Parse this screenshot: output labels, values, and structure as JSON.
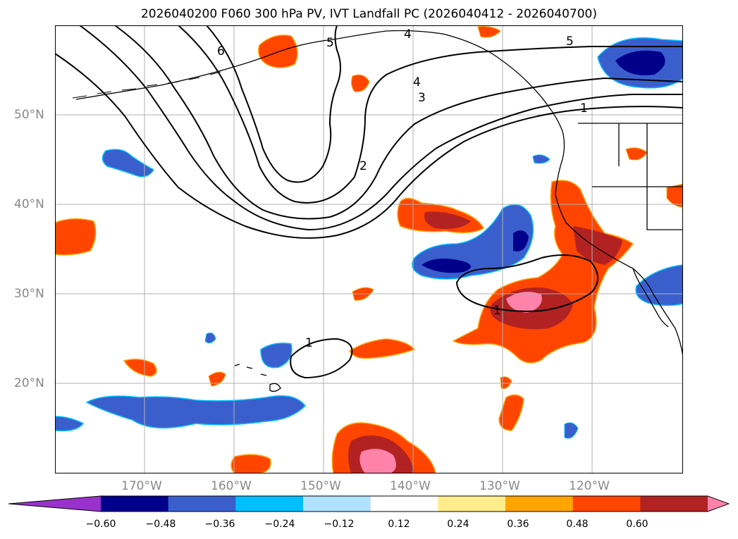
{
  "title": "2026040200 F060 300 hPa PV, IVT Landfall PC (2026040412 - 2026040700)",
  "lat_ticks": [
    "50°N",
    "40°N",
    "30°N",
    "20°N"
  ],
  "lon_ticks": [
    "170°W",
    "160°W",
    "150°W",
    "140°W",
    "130°W",
    "120°W"
  ],
  "contour_labels": [
    "6",
    "5",
    "4",
    "4",
    "3",
    "2",
    "1",
    "5",
    "1",
    "1"
  ],
  "colorbar": {
    "ticks": [
      "−0.60",
      "−0.48",
      "−0.36",
      "−0.24",
      "−0.12",
      "0.12",
      "0.24",
      "0.36",
      "0.48",
      "0.60"
    ],
    "colors": [
      "#9932cc",
      "#00008b",
      "#3a5fcd",
      "#00bfff",
      "#b0e2ff",
      "#ffffff",
      "#ffec8b",
      "#ffa500",
      "#ff4500",
      "#b22222",
      "#ff82ab"
    ]
  }
}
